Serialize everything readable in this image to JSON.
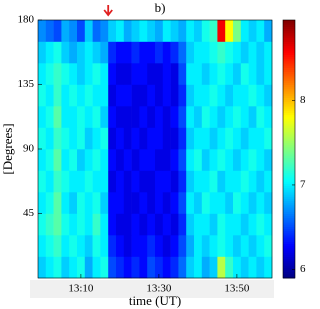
{
  "chart_data": {
    "type": "heatmap",
    "annotation": "b)",
    "xlabel": "time (UT)",
    "ylabel": "[Degrees]",
    "x": [
      780,
      782,
      784,
      786,
      788,
      790,
      792,
      794,
      796,
      798,
      800,
      802,
      804,
      806,
      808,
      810,
      812,
      814,
      816,
      818,
      820,
      822,
      824,
      826,
      828,
      830,
      832,
      834,
      836,
      838
    ],
    "y": [
      7.5,
      22.5,
      37.5,
      52.5,
      67.5,
      82.5,
      97.5,
      112.5,
      127.5,
      142.5,
      157.5,
      172.5
    ],
    "z": [
      [
        6.9,
        7.0,
        7.1,
        6.9,
        7.0,
        7.1,
        6.8,
        7.0,
        7.1,
        6.5,
        6.4,
        6.3,
        6.4,
        6.3,
        6.5,
        6.4,
        6.3,
        6.4,
        6.6,
        6.9,
        7.0,
        6.8,
        6.9,
        7.6,
        7.2,
        7.0,
        6.9,
        7.0,
        6.9,
        7.0
      ],
      [
        7.0,
        7.1,
        7.2,
        7.0,
        7.1,
        7.0,
        6.9,
        7.1,
        7.0,
        6.4,
        6.3,
        6.2,
        6.3,
        6.3,
        6.4,
        6.3,
        6.2,
        6.3,
        6.5,
        6.8,
        7.0,
        6.9,
        7.0,
        7.1,
        7.0,
        6.9,
        7.0,
        6.9,
        7.0,
        7.1
      ],
      [
        7.1,
        7.2,
        7.3,
        7.1,
        7.0,
        7.1,
        7.0,
        7.2,
        7.0,
        6.3,
        6.2,
        6.2,
        6.3,
        6.2,
        6.3,
        6.2,
        6.3,
        6.2,
        6.4,
        6.9,
        7.0,
        7.0,
        6.9,
        7.1,
        7.0,
        7.0,
        6.9,
        7.0,
        7.1,
        7.0
      ],
      [
        7.0,
        7.1,
        7.3,
        7.0,
        6.9,
        7.1,
        7.0,
        7.1,
        6.9,
        6.3,
        6.3,
        6.2,
        6.2,
        6.3,
        6.2,
        6.3,
        6.2,
        6.3,
        6.5,
        7.0,
        6.9,
        7.1,
        7.0,
        7.0,
        6.9,
        7.1,
        7.0,
        6.9,
        7.0,
        6.9
      ],
      [
        7.1,
        7.0,
        7.2,
        7.1,
        7.0,
        7.0,
        7.1,
        7.0,
        7.0,
        6.2,
        6.3,
        6.2,
        6.3,
        6.2,
        6.2,
        6.3,
        6.3,
        6.2,
        6.4,
        6.9,
        7.0,
        7.0,
        7.1,
        6.9,
        7.0,
        7.0,
        7.1,
        7.0,
        6.9,
        7.0
      ],
      [
        7.0,
        7.1,
        7.3,
        7.0,
        7.1,
        6.9,
        7.0,
        7.1,
        7.0,
        6.3,
        6.2,
        6.3,
        6.2,
        6.3,
        6.3,
        6.2,
        6.2,
        6.3,
        6.5,
        7.0,
        7.1,
        6.9,
        7.0,
        7.1,
        7.0,
        6.9,
        7.0,
        7.1,
        7.0,
        6.9
      ],
      [
        7.1,
        7.0,
        7.2,
        7.1,
        7.0,
        7.1,
        6.9,
        7.0,
        7.1,
        6.2,
        6.3,
        6.2,
        6.3,
        6.2,
        6.3,
        6.3,
        6.2,
        6.2,
        6.4,
        6.9,
        7.0,
        7.0,
        6.9,
        7.0,
        7.1,
        7.0,
        6.9,
        7.0,
        7.0,
        7.1
      ],
      [
        7.0,
        7.1,
        7.3,
        7.0,
        7.0,
        7.1,
        7.0,
        7.1,
        6.9,
        6.3,
        6.2,
        6.2,
        6.2,
        6.3,
        6.2,
        6.3,
        6.2,
        6.3,
        6.5,
        7.0,
        6.9,
        7.1,
        7.0,
        6.9,
        7.0,
        7.1,
        7.0,
        6.9,
        7.1,
        7.0
      ],
      [
        7.1,
        7.0,
        7.2,
        7.0,
        7.1,
        7.0,
        7.1,
        7.0,
        7.0,
        6.2,
        6.3,
        6.3,
        6.2,
        6.2,
        6.3,
        6.2,
        6.3,
        6.2,
        6.4,
        6.9,
        7.0,
        7.0,
        7.1,
        7.0,
        6.9,
        7.0,
        7.0,
        7.1,
        7.0,
        6.9
      ],
      [
        7.0,
        7.1,
        7.2,
        7.1,
        7.0,
        6.9,
        7.0,
        7.1,
        7.0,
        6.3,
        6.2,
        6.2,
        6.3,
        6.3,
        6.2,
        6.2,
        6.3,
        6.2,
        6.5,
        7.0,
        7.0,
        6.9,
        7.0,
        7.1,
        7.0,
        6.9,
        7.1,
        7.0,
        6.9,
        7.0
      ],
      [
        6.9,
        7.0,
        7.1,
        6.9,
        6.8,
        6.9,
        7.0,
        6.9,
        6.8,
        6.4,
        6.3,
        6.3,
        6.4,
        6.3,
        6.3,
        6.4,
        6.3,
        6.4,
        6.6,
        6.9,
        7.0,
        7.0,
        7.1,
        7.2,
        7.1,
        7.0,
        6.9,
        7.0,
        6.9,
        7.0
      ],
      [
        6.7,
        6.6,
        6.5,
        6.8,
        6.7,
        6.5,
        6.9,
        6.6,
        6.7,
        6.9,
        7.0,
        6.8,
        6.9,
        7.0,
        6.9,
        6.8,
        7.0,
        6.9,
        6.8,
        7.0,
        6.9,
        7.1,
        7.2,
        8.6,
        7.8,
        7.4,
        7.0,
        6.9,
        7.0,
        6.8
      ]
    ],
    "xlim": [
      779,
      839
    ],
    "xticks": [
      {
        "value": 790,
        "label": "13:10"
      },
      {
        "value": 810,
        "label": "13:30"
      },
      {
        "value": 830,
        "label": "13:50"
      }
    ],
    "ylim": [
      0,
      180
    ],
    "yticks": [
      45,
      90,
      135,
      180
    ],
    "clim": [
      5.9,
      8.95
    ],
    "cticks": [
      6,
      7,
      8
    ],
    "colormap": "jet",
    "marker_x": 797,
    "marker_color": "#e02020"
  }
}
